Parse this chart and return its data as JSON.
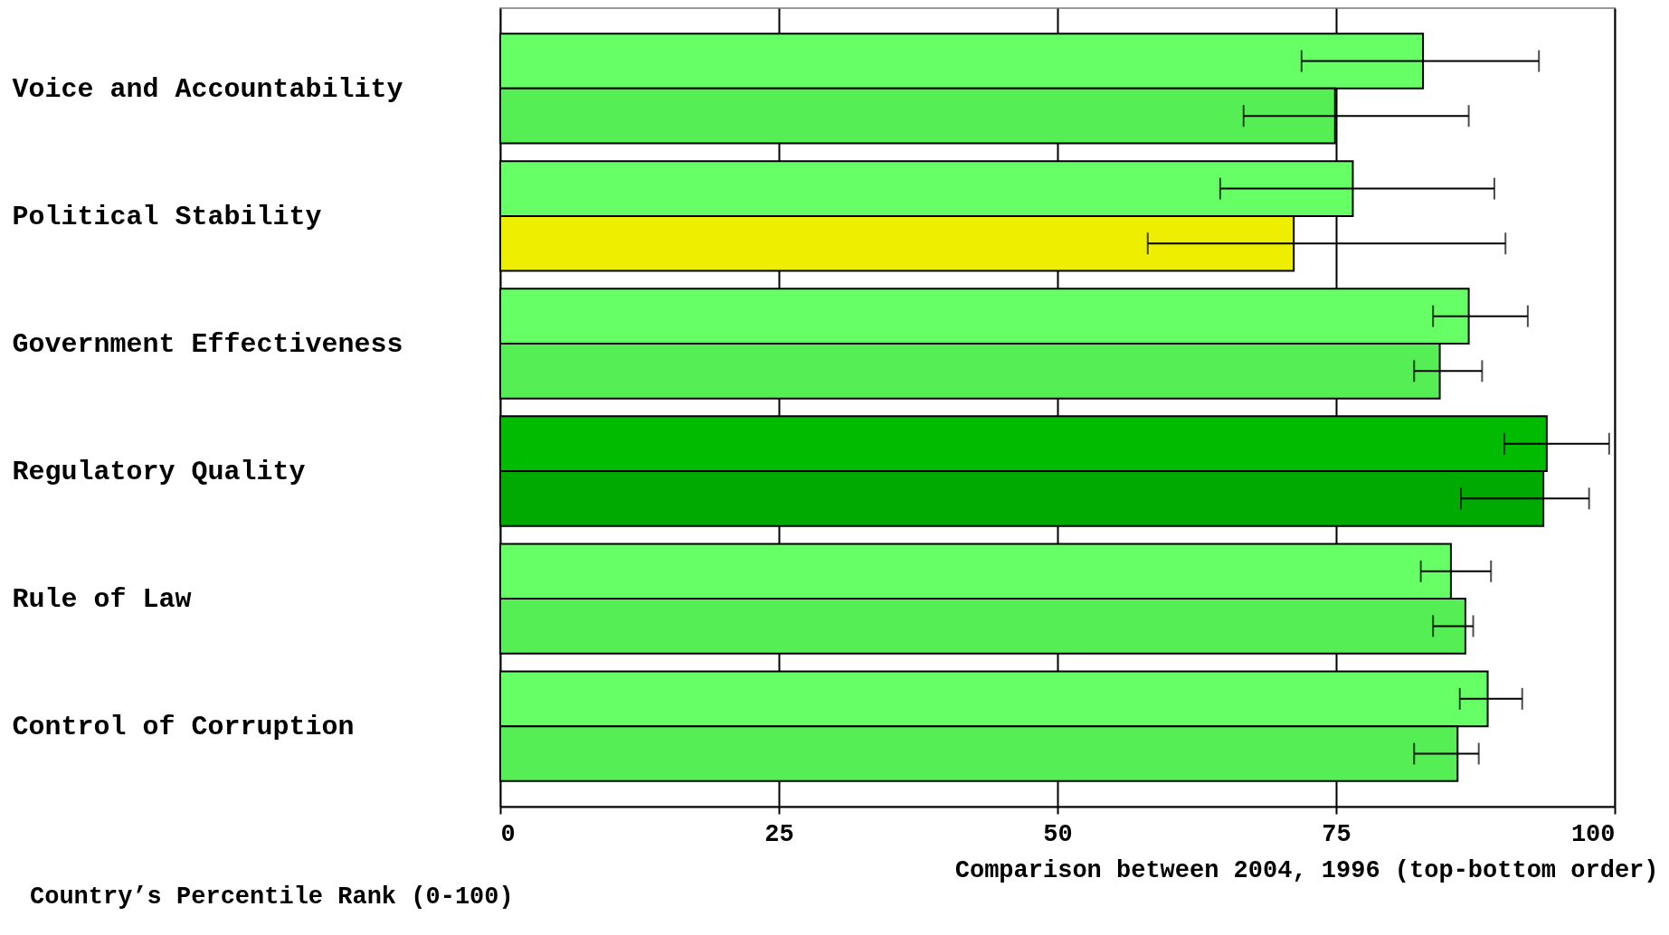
{
  "chart_data": {
    "type": "bar",
    "orientation": "horizontal",
    "categories": [
      "Voice and Accountability",
      "Political Stability",
      "Government Effectiveness",
      "Regulatory Quality",
      "Rule of Law",
      "Control of Corruption"
    ],
    "series": [
      {
        "colors": [
          "#66ff66",
          "#66ff66",
          "#66ff66",
          "#00bb00",
          "#66ff66",
          "#66ff66"
        ],
        "values": [
          82.8,
          76.5,
          86.9,
          93.9,
          85.3,
          88.6
        ],
        "errors": [
          [
            71.9,
            93.2
          ],
          [
            64.6,
            89.2
          ],
          [
            83.7,
            92.2
          ],
          [
            90.1,
            99.5
          ],
          [
            82.6,
            88.9
          ],
          [
            86.1,
            91.7
          ]
        ]
      },
      {
        "colors": [
          "#55ee55",
          "#eeee00",
          "#55ee55",
          "#00aa00",
          "#55ee55",
          "#55ee55"
        ],
        "values": [
          74.9,
          71.2,
          84.3,
          93.6,
          86.6,
          85.9
        ],
        "errors": [
          [
            66.7,
            86.9
          ],
          [
            58.1,
            90.2
          ],
          [
            82.0,
            88.1
          ],
          [
            86.2,
            97.7
          ],
          [
            83.7,
            87.3
          ],
          [
            82.0,
            87.8
          ]
        ]
      }
    ],
    "xlim": [
      0,
      100
    ],
    "xticks": [
      0,
      25,
      50,
      75,
      100
    ],
    "grid": "x",
    "xlabel": "Country’s Percentile Rank (0-100)",
    "annotations": [
      "Comparison between 2004, 1996 (top-bottom order)"
    ]
  }
}
